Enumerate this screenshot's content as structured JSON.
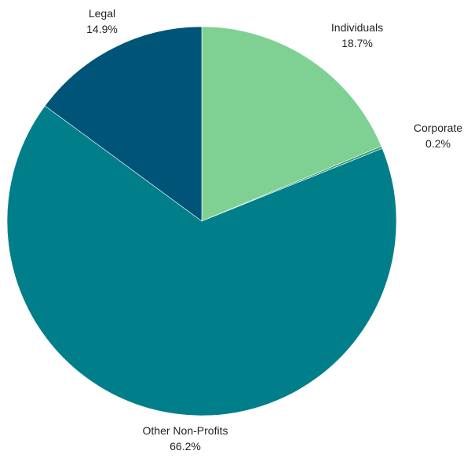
{
  "chart_data": {
    "type": "pie",
    "title": "",
    "start_angle_deg": 0,
    "direction": "clockwise",
    "slices": [
      {
        "label": "Individuals",
        "value": 18.7,
        "value_label": "18.7%",
        "color": "#7fd193"
      },
      {
        "label": "Corporate",
        "value": 0.2,
        "value_label": "0.2%",
        "color": "#3aa07a"
      },
      {
        "label": "Other Non-Profits",
        "value": 66.2,
        "value_label": "66.2%",
        "color": "#007f8a"
      },
      {
        "label": "Legal",
        "value": 14.9,
        "value_label": "14.9%",
        "color": "#005478"
      }
    ]
  }
}
